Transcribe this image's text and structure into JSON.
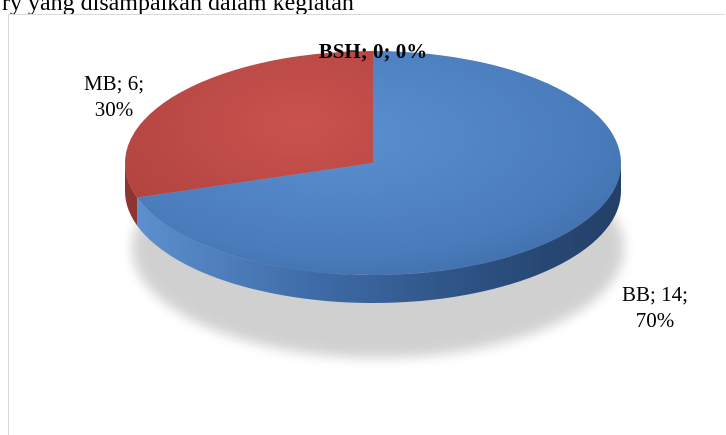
{
  "header_text": "ry yang disampaikan dalam kegiatan",
  "chart_data": {
    "type": "pie",
    "title": "",
    "categories": [
      "BSH",
      "BB",
      "MB"
    ],
    "values": [
      0,
      14,
      6
    ],
    "percents": [
      "0%",
      "70%",
      "30%"
    ],
    "colors": [
      "#4f81bd",
      "#4f81bd",
      "#c0504d"
    ],
    "legend": "none",
    "data_labels": [
      {
        "line1": "BSH; 0; 0%",
        "line2": ""
      },
      {
        "line1": "BB; 14;",
        "line2": "70%"
      },
      {
        "line1": "MB; 6;",
        "line2": "30%"
      }
    ]
  }
}
